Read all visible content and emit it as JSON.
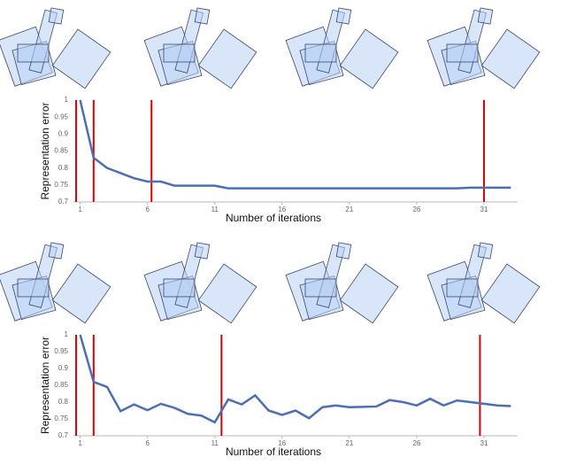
{
  "chart_data": [
    {
      "type": "line",
      "x_label": "Number of iterations",
      "y_label": "Representation error",
      "x": [
        1,
        2,
        3,
        4,
        5,
        6,
        7,
        8,
        9,
        10,
        11,
        12,
        13,
        14,
        15,
        16,
        17,
        18,
        19,
        20,
        21,
        22,
        23,
        24,
        25,
        26,
        27,
        28,
        29,
        30,
        31,
        32,
        33
      ],
      "series": [
        {
          "color": "#4a6fb5",
          "values": [
            1,
            0.83,
            0.8,
            0.785,
            0.77,
            0.76,
            0.76,
            0.748,
            0.748,
            0.748,
            0.748,
            0.74,
            0.74,
            0.74,
            0.74,
            0.74,
            0.74,
            0.74,
            0.74,
            0.74,
            0.74,
            0.74,
            0.74,
            0.74,
            0.74,
            0.74,
            0.74,
            0.74,
            0.74,
            0.742,
            0.742,
            0.742,
            0.742
          ]
        }
      ],
      "vlines": [
        0.7,
        2,
        6.3,
        31
      ],
      "vline_color": "#e00000",
      "xlim": [
        0.5,
        33.5
      ],
      "ylim": [
        0.7,
        1
      ],
      "xticks": [
        1,
        6,
        11,
        16,
        21,
        26,
        31
      ],
      "yticks": [
        0.7,
        0.75,
        0.8,
        0.85,
        0.9,
        0.95,
        1
      ]
    },
    {
      "type": "line",
      "x_label": "Number of iterations",
      "y_label": "Representation error",
      "x": [
        1,
        2,
        3,
        4,
        5,
        6,
        7,
        8,
        9,
        10,
        11,
        12,
        13,
        14,
        15,
        16,
        17,
        18,
        19,
        20,
        21,
        22,
        23,
        24,
        25,
        26,
        27,
        28,
        29,
        30,
        31,
        32,
        33
      ],
      "series": [
        {
          "color": "#4a6fb5",
          "values": [
            1,
            0.86,
            0.845,
            0.773,
            0.793,
            0.776,
            0.795,
            0.783,
            0.765,
            0.76,
            0.74,
            0.808,
            0.793,
            0.82,
            0.775,
            0.762,
            0.775,
            0.752,
            0.785,
            0.79,
            0.785,
            0.786,
            0.787,
            0.806,
            0.8,
            0.79,
            0.81,
            0.79,
            0.805,
            0.8,
            0.795,
            0.79,
            0.788
          ]
        }
      ],
      "vlines": [
        0.7,
        2,
        11.5,
        30.7
      ],
      "vline_color": "#e00000",
      "xlim": [
        0.5,
        33.5
      ],
      "ylim": [
        0.7,
        1
      ],
      "xticks": [
        1,
        6,
        11,
        16,
        21,
        26,
        31
      ],
      "yticks": [
        0.7,
        0.75,
        0.8,
        0.85,
        0.9,
        0.95,
        1
      ]
    }
  ]
}
